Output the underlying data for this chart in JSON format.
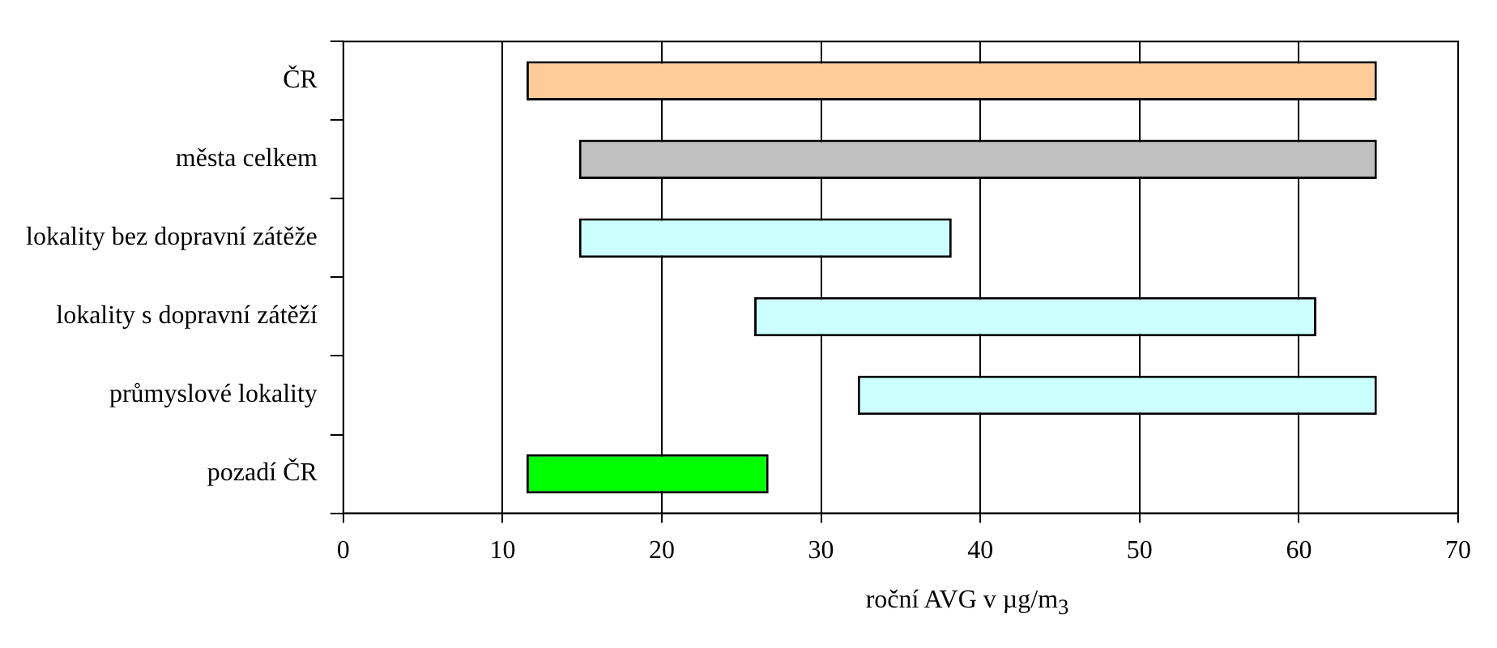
{
  "chart_data": {
    "type": "bar",
    "orientation": "horizontal",
    "xlabel": "roční AVG v µg/m$_{3}$",
    "categories": [
      "ČR",
      "města celkem",
      "lokality bez dopravní zátěže",
      "lokality s dopravní zátěží",
      "průmyslové lokality",
      "pozadí ČR"
    ],
    "base": [
      11.5,
      14.8,
      14.8,
      25.8,
      32.3,
      11.5
    ],
    "values": [
      53.4,
      50.1,
      23.4,
      35.3,
      32.6,
      15.2
    ],
    "colors": [
      "#ffcc99",
      "#c0c0c0",
      "#ccffff",
      "#ccffff",
      "#ccffff",
      "#00ff00"
    ],
    "xlim": [
      0,
      70
    ],
    "xticks": [
      0,
      10,
      20,
      30,
      40,
      50,
      60,
      70
    ],
    "grid": "x"
  }
}
